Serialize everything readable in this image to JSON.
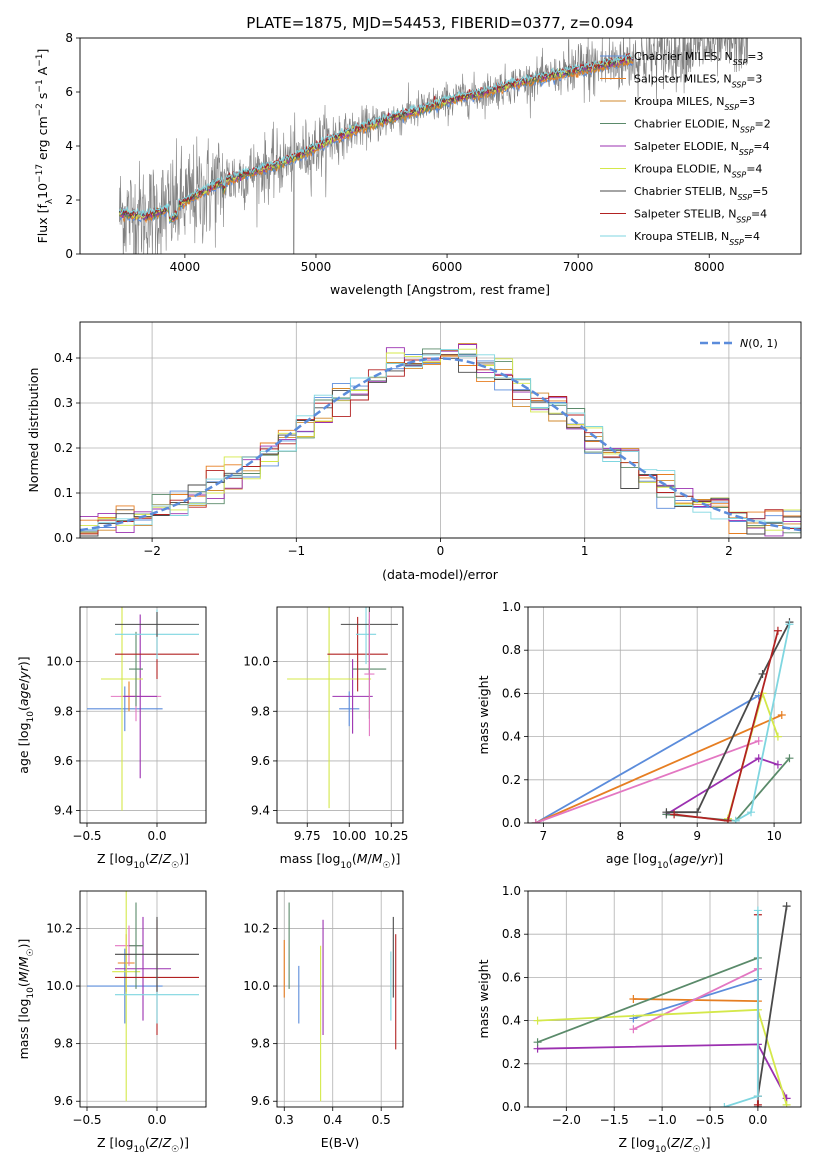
{
  "chart_data": [
    {
      "id": "spectrum",
      "type": "line",
      "title": "PLATE=1875, MJD=54453, FIBERID=0377, z=0.094",
      "xlabel": "wavelength [Angstrom, rest frame]",
      "ylabel": "Flux [f_λ 10^-17 erg cm^-2 s^-1 A^-1]",
      "xlim": [
        3200,
        8700
      ],
      "ylim": [
        0,
        8
      ],
      "xticks": [
        4000,
        5000,
        6000,
        7000,
        8000
      ],
      "yticks": [
        0,
        2,
        4,
        6,
        8
      ],
      "grid": false,
      "legend": "right",
      "series": [
        {
          "name": "Chabrier MILES, N_SSP=3",
          "color": "#5b8cdb"
        },
        {
          "name": "Salpeter MILES, N_SSP=3",
          "color": "#e67e22"
        },
        {
          "name": "Kroupa MILES, N_SSP=3",
          "color": "#d28a2e"
        },
        {
          "name": "Chabrier ELODIE, N_SSP=2",
          "color": "#5a8a6a"
        },
        {
          "name": "Salpeter ELODIE, N_SSP=4",
          "color": "#9b30b0"
        },
        {
          "name": "Kroupa ELODIE, N_SSP=4",
          "color": "#d4e84a"
        },
        {
          "name": "Chabrier STELIB, N_SSP=5",
          "color": "#4a4a4a"
        },
        {
          "name": "Salpeter STELIB, N_SSP=4",
          "color": "#b22222"
        },
        {
          "name": "Kroupa STELIB, N_SSP=4",
          "color": "#7fd6e0"
        }
      ],
      "data_color": "#808080",
      "continuum": {
        "x": [
          3500,
          3700,
          3900,
          4100,
          4300,
          4500,
          4700,
          4900,
          5100,
          5300,
          5500,
          5700,
          5900,
          6100,
          6300,
          6500,
          6700,
          6900,
          7100,
          7300,
          7400
        ],
        "y": [
          1.5,
          1.4,
          1.7,
          2.2,
          2.7,
          3.0,
          3.3,
          3.7,
          4.2,
          4.6,
          4.9,
          5.2,
          5.5,
          5.8,
          6.0,
          6.3,
          6.5,
          6.7,
          6.9,
          7.1,
          7.2
        ]
      },
      "model_end": 7420,
      "data_end": 8300
    },
    {
      "id": "residuals",
      "type": "histogram",
      "xlabel": "(data-model)/error",
      "ylabel": "Normed distribution",
      "xlim": [
        -2.5,
        2.5
      ],
      "ylim": [
        0,
        0.48
      ],
      "xticks": [
        -2,
        -1,
        0,
        1,
        2
      ],
      "yticks": [
        0,
        0.1,
        0.2,
        0.3,
        0.4
      ],
      "grid": true,
      "legend": "top-right",
      "gauss_label": "N(0,1)",
      "gauss_color": "#5b8cdb"
    },
    {
      "id": "age-vs-Z",
      "type": "errorbar",
      "xlabel": "Z [log10(Z/Z☉)]",
      "ylabel": "age  [log10(age/yr)]",
      "xlim": [
        -0.55,
        0.35
      ],
      "ylim": [
        9.35,
        10.22
      ],
      "xticks": [
        -0.5,
        0.0
      ],
      "yticks": [
        9.4,
        9.6,
        9.8,
        10.0
      ],
      "grid": true,
      "points": [
        {
          "x": -0.23,
          "y": 9.81,
          "xerr": 0.27,
          "yerr": 0.09,
          "color": "#5b8cdb"
        },
        {
          "x": -0.2,
          "y": 9.86,
          "xerr": 0.06,
          "yerr": 0.06,
          "color": "#e67e22"
        },
        {
          "x": -0.15,
          "y": 9.86,
          "xerr": 0.18,
          "yerr": 0.1,
          "color": "#e377c2"
        },
        {
          "x": -0.12,
          "y": 9.86,
          "xerr": 0.12,
          "yerr": 0.33,
          "color": "#9b30b0"
        },
        {
          "x": -0.25,
          "y": 9.93,
          "xerr": 0.15,
          "yerr": 0.53,
          "color": "#d4e84a"
        },
        {
          "x": -0.15,
          "y": 9.97,
          "xerr": 0.05,
          "yerr": 0.15,
          "color": "#5a8a6a"
        },
        {
          "x": 0.0,
          "y": 10.03,
          "xerr": 0.3,
          "yerr": 0.1,
          "color": "#b22222"
        },
        {
          "x": 0.0,
          "y": 10.11,
          "xerr": 0.3,
          "yerr": 0.1,
          "color": "#7fd6e0"
        },
        {
          "x": 0.0,
          "y": 10.15,
          "xerr": 0.3,
          "yerr": 0.05,
          "color": "#4a4a4a"
        }
      ]
    },
    {
      "id": "age-vs-mass",
      "type": "errorbar",
      "xlabel": "mass [log10(M/M☉)]",
      "ylabel": "",
      "xlim": [
        9.57,
        10.32
      ],
      "ylim": [
        9.35,
        10.22
      ],
      "xticks": [
        9.75,
        10.0,
        10.25
      ],
      "yticks": [
        9.4,
        9.6,
        9.8,
        10.0
      ],
      "grid": true,
      "points": [
        {
          "x": 10.0,
          "y": 9.81,
          "xerr": 0.06,
          "yerr": 0.07,
          "color": "#5b8cdb"
        },
        {
          "x": 10.02,
          "y": 9.86,
          "xerr": 0.12,
          "yerr": 0.15,
          "color": "#9b30b0"
        },
        {
          "x": 9.88,
          "y": 9.93,
          "xerr": 0.25,
          "yerr": 0.52,
          "color": "#d4e84a"
        },
        {
          "x": 10.12,
          "y": 9.97,
          "xerr": 0.1,
          "yerr": 0.2,
          "color": "#5a8a6a"
        },
        {
          "x": 10.05,
          "y": 10.03,
          "xerr": 0.18,
          "yerr": 0.15,
          "color": "#b22222"
        },
        {
          "x": 10.1,
          "y": 10.11,
          "xerr": 0.06,
          "yerr": 0.12,
          "color": "#7fd6e0"
        },
        {
          "x": 10.12,
          "y": 10.15,
          "xerr": 0.17,
          "yerr": 0.2,
          "color": "#4a4a4a"
        },
        {
          "x": 10.12,
          "y": 9.95,
          "xerr": 0.03,
          "yerr": 0.25,
          "color": "#e377c2"
        }
      ]
    },
    {
      "id": "weight-vs-age",
      "type": "line",
      "xlabel": "age  [log10(age/yr)]",
      "ylabel": "mass weight",
      "xlim": [
        6.8,
        10.35
      ],
      "ylim": [
        0,
        1.0
      ],
      "xticks": [
        7,
        8,
        9,
        10
      ],
      "yticks": [
        0.0,
        0.2,
        0.4,
        0.6,
        0.8,
        1.0
      ],
      "grid": true,
      "series": [
        {
          "color": "#5b8cdb",
          "x": [
            6.9,
            9.8
          ],
          "y": [
            0.0,
            0.59
          ]
        },
        {
          "color": "#e67e22",
          "x": [
            6.9,
            10.1
          ],
          "y": [
            0.0,
            0.5
          ]
        },
        {
          "color": "#e377c2",
          "x": [
            6.9,
            9.8
          ],
          "y": [
            0.0,
            0.38
          ]
        },
        {
          "color": "#9b30b0",
          "x": [
            8.6,
            9.8,
            10.05
          ],
          "y": [
            0.04,
            0.3,
            0.27
          ]
        },
        {
          "color": "#d4e84a",
          "x": [
            9.4,
            9.85,
            10.05
          ],
          "y": [
            0.02,
            0.6,
            0.4
          ]
        },
        {
          "color": "#5a8a6a",
          "x": [
            8.6,
            9.5,
            10.2
          ],
          "y": [
            0.04,
            0.01,
            0.3
          ]
        },
        {
          "color": "#4a4a4a",
          "x": [
            8.6,
            9.0,
            9.85,
            10.2
          ],
          "y": [
            0.05,
            0.05,
            0.69,
            0.93
          ]
        },
        {
          "color": "#b22222",
          "x": [
            8.7,
            9.4,
            10.05
          ],
          "y": [
            0.04,
            0.01,
            0.89
          ]
        },
        {
          "color": "#7fd6e0",
          "x": [
            9.5,
            9.7,
            10.2
          ],
          "y": [
            0.01,
            0.05,
            0.92
          ]
        }
      ]
    },
    {
      "id": "mass-vs-Z",
      "type": "errorbar",
      "xlabel": "Z [log10(Z/Z☉)]",
      "ylabel": "mass [log10(M/M☉)]",
      "xlim": [
        -0.55,
        0.35
      ],
      "ylim": [
        9.58,
        10.33
      ],
      "xticks": [
        -0.5,
        0.0
      ],
      "yticks": [
        9.6,
        9.8,
        10.0,
        10.2
      ],
      "grid": true,
      "points": [
        {
          "x": -0.23,
          "y": 10.0,
          "xerr": 0.27,
          "yerr": 0.13,
          "color": "#5b8cdb"
        },
        {
          "x": -0.22,
          "y": 10.08,
          "xerr": 0.06,
          "yerr": 0.1,
          "color": "#e67e22"
        },
        {
          "x": -0.2,
          "y": 10.14,
          "xerr": 0.1,
          "yerr": 0.07,
          "color": "#e377c2"
        },
        {
          "x": -0.1,
          "y": 10.06,
          "xerr": 0.2,
          "yerr": 0.18,
          "color": "#9b30b0"
        },
        {
          "x": -0.22,
          "y": 10.05,
          "xerr": 0.1,
          "yerr": 0.45,
          "color": "#d4e84a"
        },
        {
          "x": -0.15,
          "y": 10.14,
          "xerr": 0.05,
          "yerr": 0.15,
          "color": "#5a8a6a"
        },
        {
          "x": 0.0,
          "y": 10.03,
          "xerr": 0.3,
          "yerr": 0.2,
          "color": "#b22222"
        },
        {
          "x": 0.0,
          "y": 9.97,
          "xerr": 0.3,
          "yerr": 0.1,
          "color": "#7fd6e0"
        },
        {
          "x": 0.0,
          "y": 10.11,
          "xerr": 0.3,
          "yerr": 0.13,
          "color": "#4a4a4a"
        }
      ]
    },
    {
      "id": "mass-vs-EBV",
      "type": "errorbar",
      "xlabel": "E(B-V)",
      "ylabel": "",
      "xlim": [
        0.285,
        0.545
      ],
      "ylim": [
        9.58,
        10.33
      ],
      "xticks": [
        0.3,
        0.4,
        0.5
      ],
      "yticks": [
        9.6,
        9.8,
        10.0,
        10.2
      ],
      "grid": true,
      "points": [
        {
          "x": 0.3,
          "y": 10.06,
          "xerr": 0,
          "yerr": 0.1,
          "color": "#e67e22"
        },
        {
          "x": 0.31,
          "y": 10.14,
          "xerr": 0,
          "yerr": 0.15,
          "color": "#5a8a6a"
        },
        {
          "x": 0.33,
          "y": 9.97,
          "xerr": 0,
          "yerr": 0.1,
          "color": "#5b8cdb"
        },
        {
          "x": 0.375,
          "y": 9.87,
          "xerr": 0,
          "yerr": 0.27,
          "color": "#d4e84a"
        },
        {
          "x": 0.38,
          "y": 10.03,
          "xerr": 0,
          "yerr": 0.2,
          "color": "#9b30b0"
        },
        {
          "x": 0.525,
          "y": 10.1,
          "xerr": 0,
          "yerr": 0.14,
          "color": "#4a4a4a"
        },
        {
          "x": 0.53,
          "y": 9.98,
          "xerr": 0,
          "yerr": 0.2,
          "color": "#b22222"
        },
        {
          "x": 0.52,
          "y": 10.0,
          "xerr": 0,
          "yerr": 0.12,
          "color": "#7fd6e0"
        }
      ]
    },
    {
      "id": "weight-vs-Z",
      "type": "line",
      "xlabel": "Z [log10(Z/Z☉)]",
      "ylabel": "mass weight",
      "xlim": [
        -2.4,
        0.45
      ],
      "ylim": [
        0,
        1.0
      ],
      "xticks": [
        -2.0,
        -1.5,
        -1.0,
        -0.5,
        0.0
      ],
      "yticks": [
        0.0,
        0.2,
        0.4,
        0.6,
        0.8,
        1.0
      ],
      "grid": true,
      "series": [
        {
          "color": "#5b8cdb",
          "x": [
            -1.3,
            0.0,
            0.0
          ],
          "y": [
            0.41,
            0.59,
            0.0
          ]
        },
        {
          "color": "#e67e22",
          "x": [
            -1.3,
            0.0
          ],
          "y": [
            0.5,
            0.49
          ]
        },
        {
          "color": "#e377c2",
          "x": [
            -1.3,
            0.0
          ],
          "y": [
            0.36,
            0.64
          ]
        },
        {
          "color": "#9b30b0",
          "x": [
            -2.3,
            0.0,
            0.3
          ],
          "y": [
            0.27,
            0.29,
            0.04
          ]
        },
        {
          "color": "#d4e84a",
          "x": [
            -2.3,
            0.0,
            0.3
          ],
          "y": [
            0.4,
            0.45,
            0.01
          ]
        },
        {
          "color": "#5a8a6a",
          "x": [
            -2.3,
            0.0,
            0.0
          ],
          "y": [
            0.3,
            0.69,
            0.0
          ]
        },
        {
          "color": "#4a4a4a",
          "x": [
            0.0,
            0.0,
            0.3
          ],
          "y": [
            0.0,
            0.05,
            0.93
          ]
        },
        {
          "color": "#b22222",
          "x": [
            0.0,
            0.0
          ],
          "y": [
            0.01,
            0.89
          ]
        },
        {
          "color": "#7fd6e0",
          "x": [
            -0.35,
            0.0,
            0.0
          ],
          "y": [
            0.0,
            0.05,
            0.91
          ]
        }
      ]
    }
  ]
}
